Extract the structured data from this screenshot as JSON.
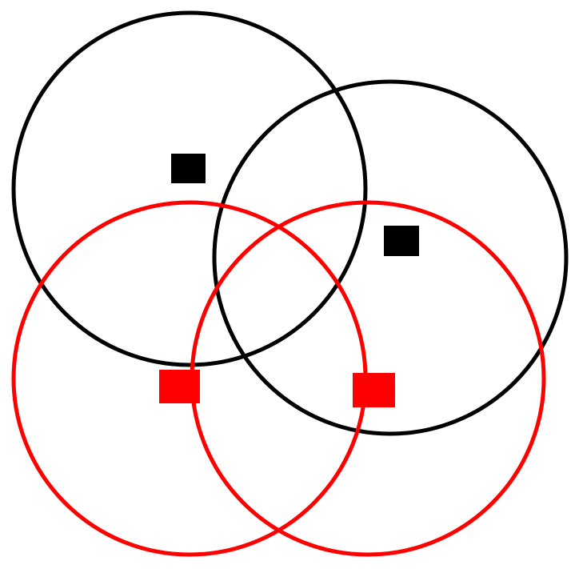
{
  "colors": {
    "background": "#ffffff",
    "black": "#000000",
    "red": "#ff0000"
  },
  "circles": [
    {
      "name": "black-circle-left",
      "color": "black"
    },
    {
      "name": "black-circle-right",
      "color": "black"
    },
    {
      "name": "red-circle-left",
      "color": "red"
    },
    {
      "name": "red-circle-right",
      "color": "red"
    }
  ],
  "markers": [
    {
      "name": "black-square-left",
      "color": "black"
    },
    {
      "name": "black-square-right",
      "color": "black"
    },
    {
      "name": "red-square-left",
      "color": "red"
    },
    {
      "name": "red-square-right",
      "color": "red"
    }
  ]
}
